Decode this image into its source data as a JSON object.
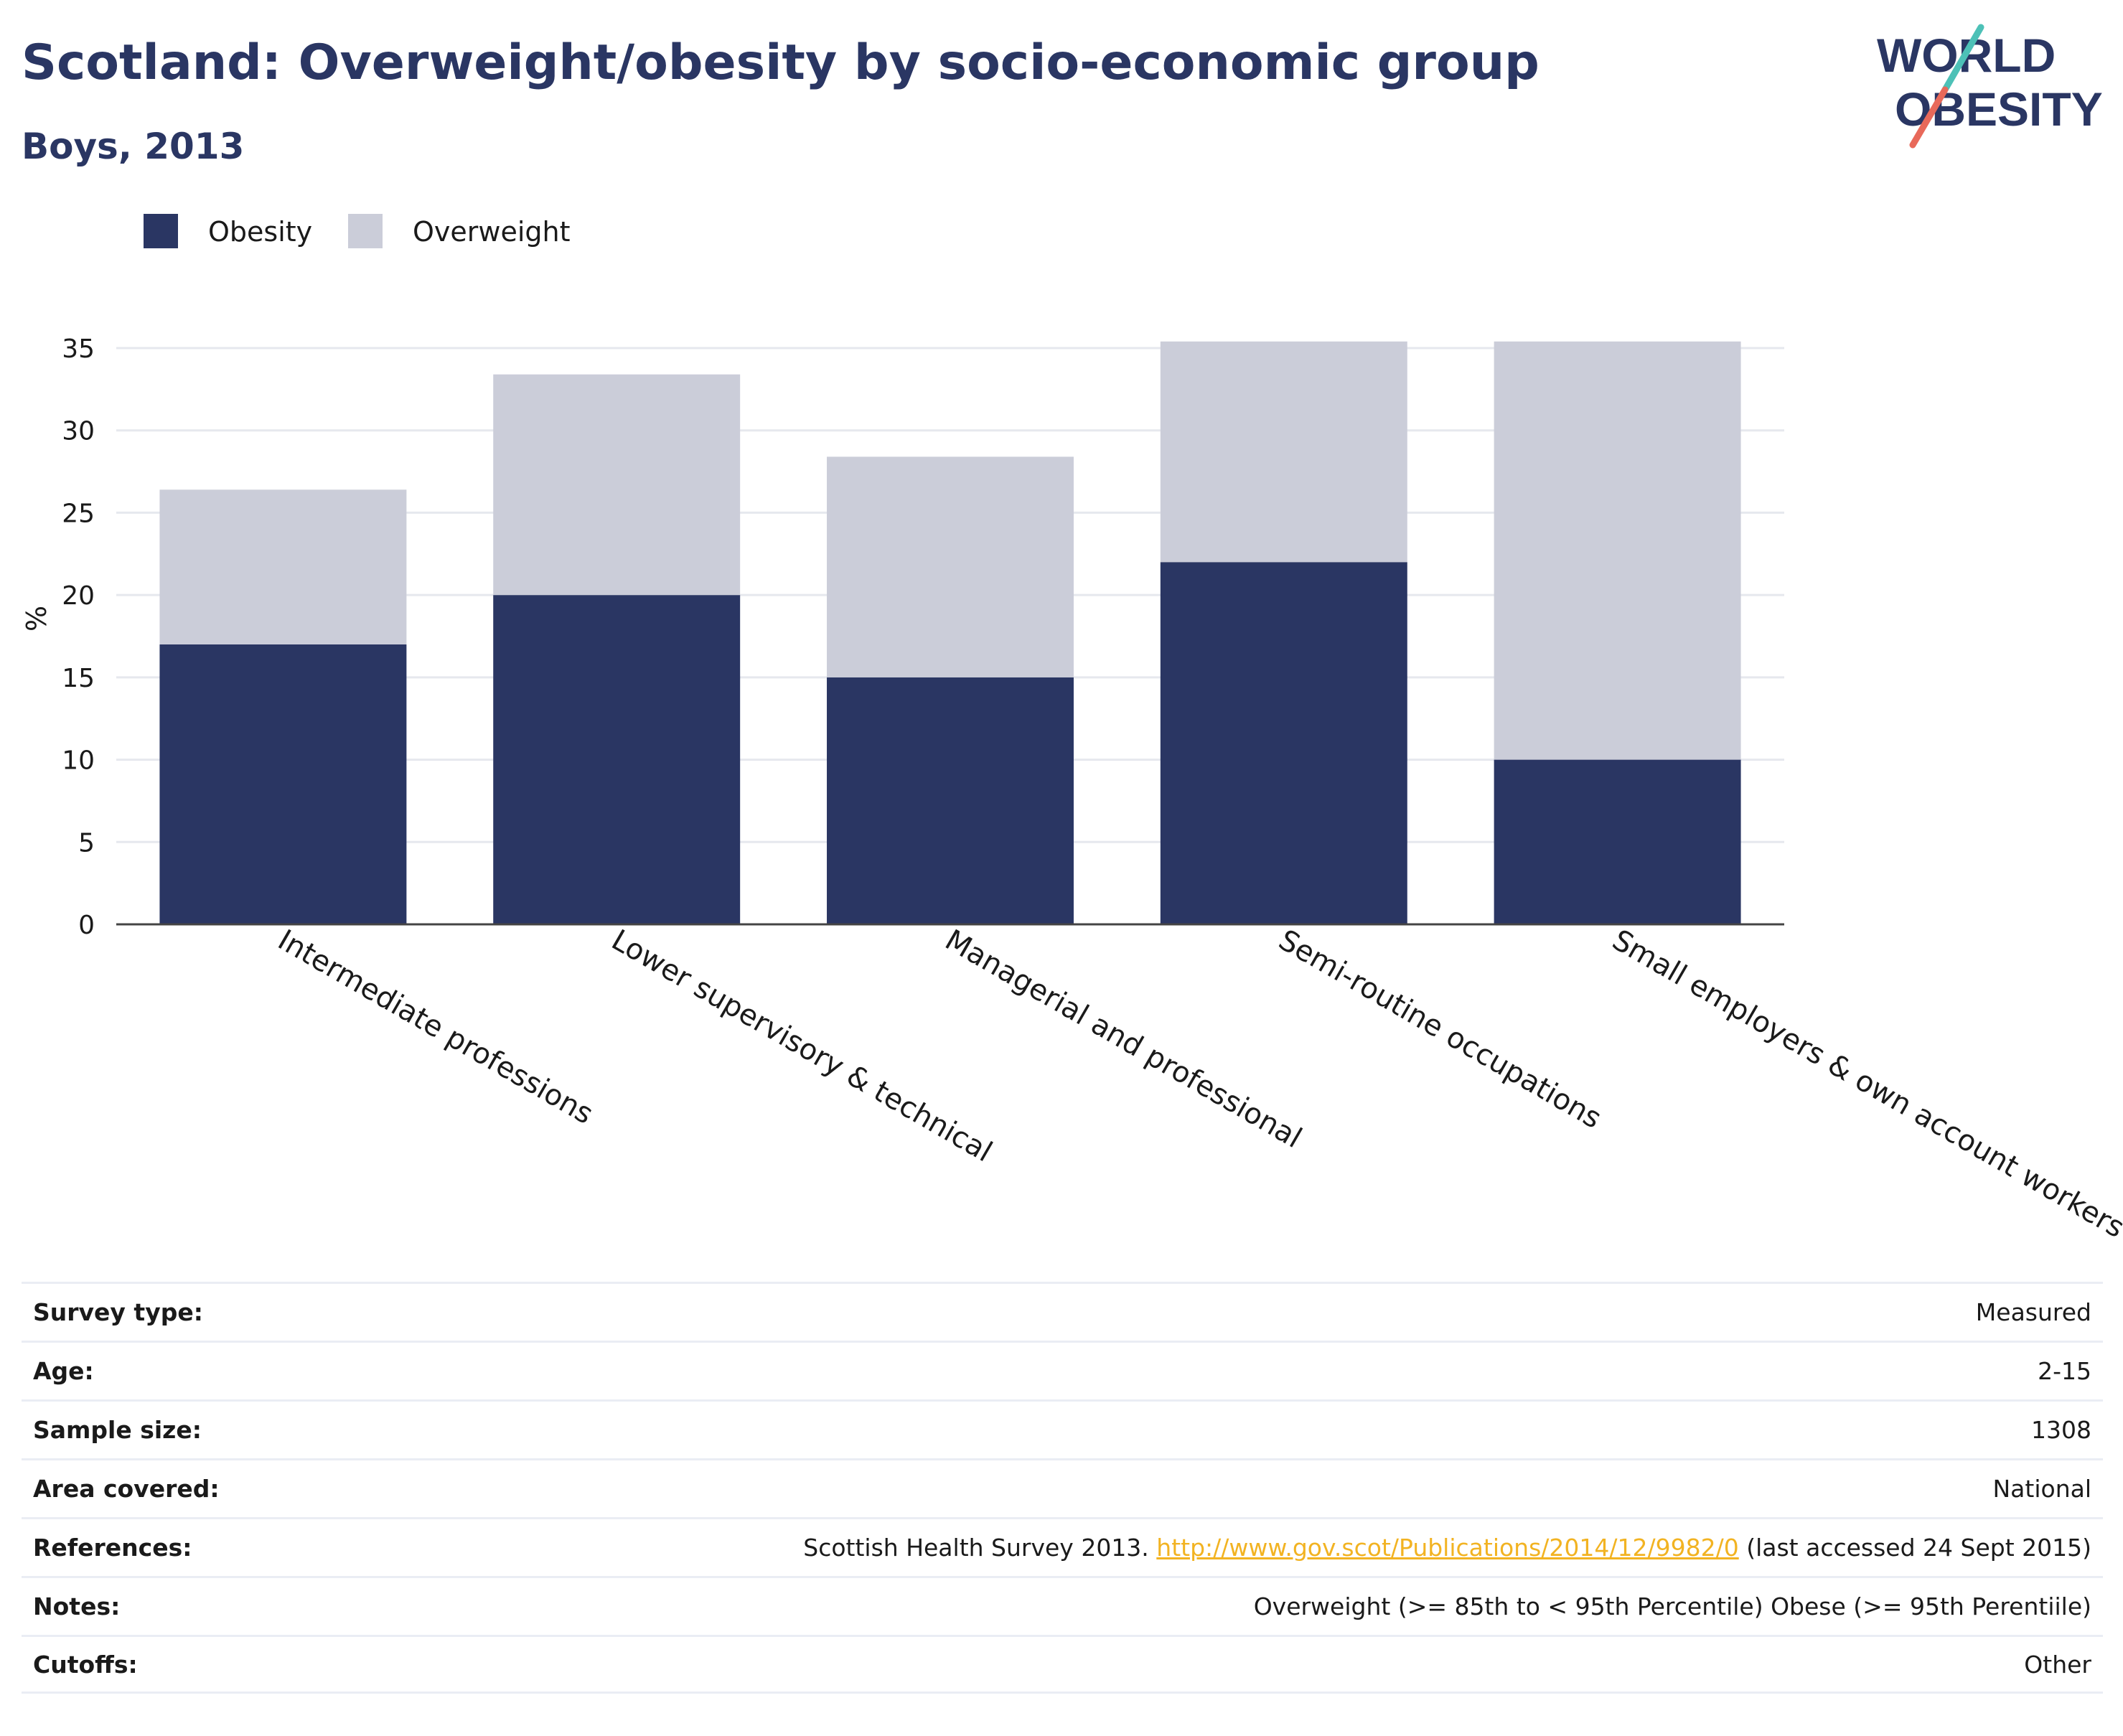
{
  "header": {
    "title": "Scotland: Overweight/obesity by socio-economic group",
    "subtitle": "Boys, 2013"
  },
  "logo": {
    "line1": "WORLD",
    "line2": "OBESITY"
  },
  "colors": {
    "obesity": "#2a3663",
    "overweight": "#cbcdd9",
    "link": "#f2b322",
    "logo_accent1": "#4dc1b7",
    "logo_accent2": "#e8695a"
  },
  "chart_data": {
    "type": "bar",
    "stacked": true,
    "title": "",
    "xlabel": "",
    "ylabel": "%",
    "ylim": [
      0,
      35
    ],
    "yticks": [
      "0",
      "5",
      "10",
      "15",
      "20",
      "25",
      "30",
      "35"
    ],
    "grid": true,
    "legend_position": "top-left",
    "categories": [
      "Intermediate professions",
      "Lower supervisory & technical",
      "Managerial and professional",
      "Semi-routine occupations",
      "Small employers & own account workers"
    ],
    "series": [
      {
        "name": "Obesity",
        "color": "#2a3663",
        "values": [
          17,
          20,
          15,
          22,
          10
        ]
      },
      {
        "name": "Overweight",
        "color": "#cbcdd9",
        "values": [
          9.4,
          13.4,
          13.4,
          13.4,
          25.4
        ]
      }
    ]
  },
  "meta": {
    "rows": [
      {
        "label": "Survey type:",
        "value": "Measured"
      },
      {
        "label": "Age:",
        "value": "2-15"
      },
      {
        "label": "Sample size:",
        "value": "1308"
      },
      {
        "label": "Area covered:",
        "value": "National"
      },
      {
        "label": "References:",
        "value_pre": "Scottish Health Survey 2013. ",
        "link": "http://www.gov.scot/Publications/2014/12/9982/0",
        "value_post": " (last accessed 24 Sept 2015)"
      },
      {
        "label": "Notes:",
        "value": "Overweight (>= 85th to < 95th Percentile) Obese (>= 95th Perentiile)"
      },
      {
        "label": "Cutoffs:",
        "value": "Other"
      }
    ]
  }
}
